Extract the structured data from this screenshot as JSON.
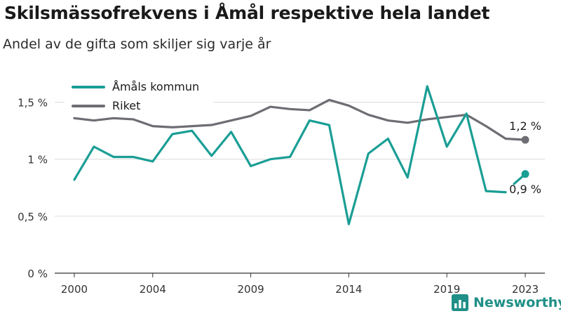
{
  "title": "Skilsmässofrekvens i Åmål respektive hela landet",
  "subtitle": "Andel av de gifta som skiljer sig varje år",
  "brand": {
    "name": "Newsworthy",
    "icon": "newsworthy-bar-chart-logo-icon"
  },
  "chart_data": {
    "type": "line",
    "x": [
      2000,
      2001,
      2002,
      2003,
      2004,
      2005,
      2006,
      2007,
      2008,
      2009,
      2010,
      2011,
      2012,
      2013,
      2014,
      2015,
      2016,
      2017,
      2018,
      2019,
      2020,
      2021,
      2022,
      2023
    ],
    "x_ticks": [
      2000,
      2004,
      2009,
      2014,
      2019,
      2023
    ],
    "x_tick_labels": [
      "2000",
      "2004",
      "2009",
      "2014",
      "2019",
      "2023"
    ],
    "xlim": [
      1999.0,
      2024.0
    ],
    "ylim": [
      0,
      1.75
    ],
    "y_ticks": [
      0,
      0.5,
      1,
      1.5
    ],
    "y_tick_labels": [
      "0 %",
      "0,5 %",
      "1 %",
      "1,5 %"
    ],
    "grid": "horizontal",
    "legend_position": "top-left",
    "series": [
      {
        "name": "Åmåls kommun",
        "color": "#1a9e95",
        "values": [
          0.82,
          1.11,
          1.02,
          1.02,
          0.98,
          1.22,
          1.25,
          1.03,
          1.24,
          0.94,
          1.0,
          1.02,
          1.34,
          1.3,
          0.43,
          1.05,
          1.18,
          0.84,
          1.64,
          1.11,
          1.4,
          0.72,
          0.71,
          0.87
        ],
        "end_label": "0,9 %"
      },
      {
        "name": "Riket",
        "color": "#6d6d73",
        "values": [
          1.36,
          1.34,
          1.36,
          1.35,
          1.29,
          1.28,
          1.29,
          1.3,
          1.34,
          1.38,
          1.46,
          1.44,
          1.43,
          1.52,
          1.47,
          1.39,
          1.34,
          1.32,
          1.35,
          1.37,
          1.39,
          1.29,
          1.18,
          1.17
        ],
        "end_label": "1,2 %"
      }
    ]
  }
}
